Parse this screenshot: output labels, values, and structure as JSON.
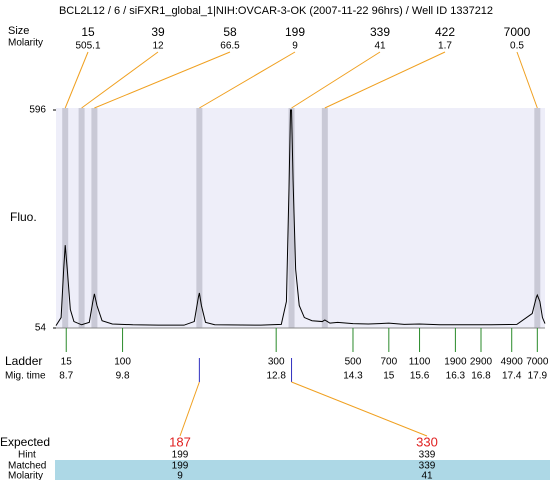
{
  "chart_data": {
    "type": "line",
    "title": "BCL2L12 / 6 / siFXR1_global_1|NIH:OVCAR-3-OK (2007-11-22 96hrs) / Well ID 1337212",
    "size_label": "Size",
    "molarity_label": "Molarity",
    "y_label": "Fluo.",
    "ylim": [
      54,
      596
    ],
    "yticks": [
      54,
      596
    ],
    "xlim": [
      8.5,
      18.05
    ],
    "color": "#000000",
    "x": [
      8.5,
      8.6,
      8.65,
      8.68,
      8.72,
      8.78,
      8.85,
      9.0,
      9.15,
      9.22,
      9.25,
      9.3,
      9.4,
      9.6,
      10.0,
      10.5,
      11.0,
      11.2,
      11.28,
      11.3,
      11.34,
      11.42,
      11.6,
      12.5,
      12.9,
      13.0,
      13.05,
      13.08,
      13.1,
      13.13,
      13.18,
      13.25,
      13.35,
      13.5,
      13.7,
      13.75,
      13.85,
      14.0,
      14.3,
      14.6,
      15.0,
      15.3,
      15.6,
      16.0,
      16.5,
      17.0,
      17.5,
      17.8,
      17.88,
      17.9,
      17.95,
      18.0,
      18.05
    ],
    "values": [
      60,
      80,
      200,
      260,
      200,
      100,
      70,
      62,
      68,
      120,
      139,
      110,
      72,
      64,
      62,
      61,
      61,
      70,
      130,
      141,
      110,
      68,
      62,
      61,
      63,
      120,
      400,
      596,
      596,
      420,
      200,
      110,
      80,
      72,
      70,
      74,
      66,
      68,
      65,
      64,
      66,
      63,
      64,
      62,
      62,
      62,
      63,
      90,
      130,
      136,
      120,
      80,
      65
    ],
    "peaks": [
      {
        "size": 15,
        "molarity": 505.1,
        "time": 8.68
      },
      {
        "size": 39,
        "molarity": 12,
        "time": 9.0
      },
      {
        "size": 58,
        "molarity": 66.5,
        "time": 9.25
      },
      {
        "size": 199,
        "molarity": 9,
        "time": 11.3
      },
      {
        "size": 339,
        "molarity": 41,
        "time": 13.1
      },
      {
        "size": 422,
        "molarity": 1.7,
        "time": 13.75
      },
      {
        "size": 7000,
        "molarity": 0.5,
        "time": 17.9
      }
    ],
    "ladder": {
      "label": "Ladder",
      "time_label": "Mig. time",
      "sizes": [
        15,
        100,
        300,
        500,
        700,
        1100,
        1900,
        2900,
        4900,
        7000
      ],
      "times": [
        8.7,
        9.8,
        12.8,
        14.3,
        15,
        15.6,
        16.3,
        16.8,
        17.4,
        17.9
      ]
    },
    "expected": {
      "label": "Expected",
      "hint_label": "Hint",
      "matched_label": "Matched",
      "molarity_label": "Molarity",
      "values": [
        187,
        330
      ],
      "hint": [
        199,
        339
      ],
      "matched": [
        199,
        339
      ],
      "molarity": [
        9,
        41
      ]
    }
  }
}
